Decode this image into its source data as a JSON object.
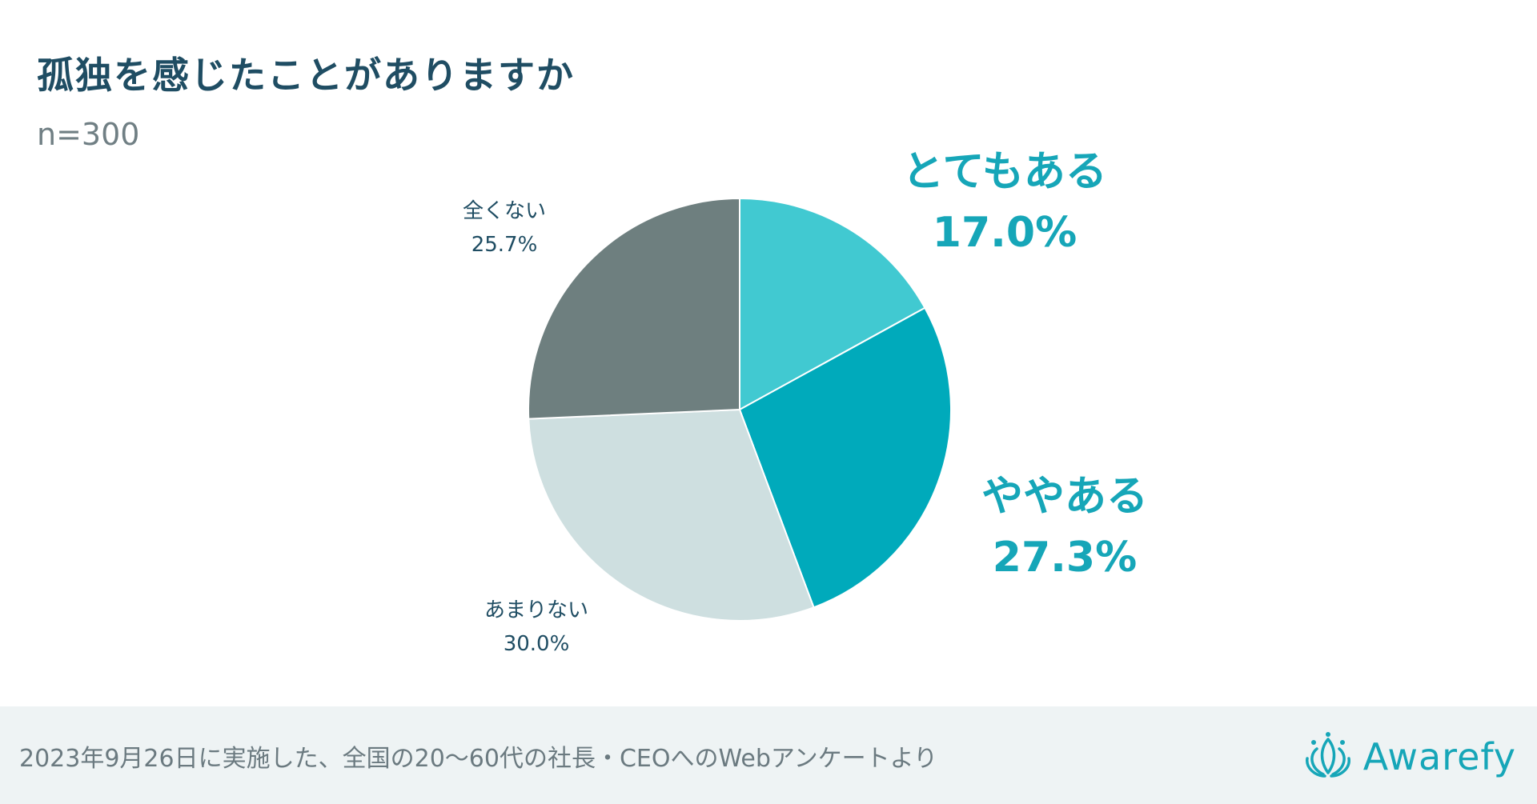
{
  "page": {
    "title": "孤独を感じたことがありますか",
    "sample": "n=300",
    "footnote": "2023年9月26日に実施した、全国の20〜60代の社長・CEOへのWebアンケートより",
    "brand": "Awarefy"
  },
  "colors": {
    "accent": "#16a6b8",
    "title": "#1f4d63",
    "muted": "#707f84",
    "footer_bg": "#eef3f4"
  },
  "chart_data": {
    "type": "pie",
    "title": "孤独を感じたことがありますか",
    "subtitle": "n=300",
    "start_angle": "12 o'clock",
    "direction": "clockwise",
    "categories": [
      "とてもある",
      "ややある",
      "あまりない",
      "全くない"
    ],
    "values": [
      17.0,
      27.3,
      30.0,
      25.7
    ],
    "value_labels": [
      "17.0%",
      "27.3%",
      "30.0%",
      "25.7%"
    ],
    "colors": [
      "#41c9d1",
      "#00aabb",
      "#cedfe0",
      "#6e7f7f"
    ]
  }
}
